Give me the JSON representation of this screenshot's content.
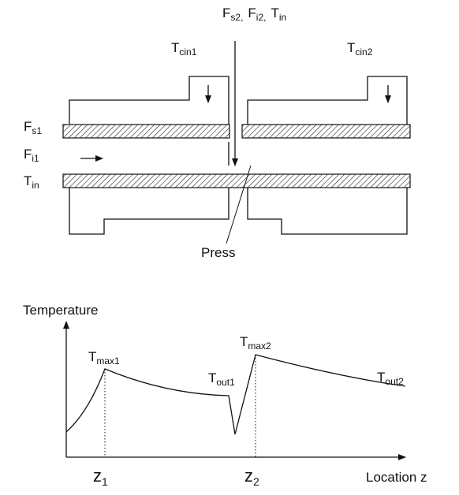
{
  "labels": {
    "fs1": {
      "main": "F",
      "sub": "s1"
    },
    "fi1": {
      "main": "F",
      "sub": "i1"
    },
    "tin_left": {
      "main": "T",
      "sub": "in"
    },
    "top_fs2": {
      "main": "F",
      "sub": "s2,"
    },
    "top_fi2": {
      "main": "F",
      "sub": "i2,"
    },
    "top_tin": {
      "main": "T",
      "sub": "in"
    },
    "tcin1": {
      "main": "T",
      "sub": "cin1"
    },
    "tcin2": {
      "main": "T",
      "sub": "cin2"
    },
    "press": "Press",
    "temperature": "Temperature",
    "tmax1": {
      "main": "T",
      "sub": "max1"
    },
    "tout1": {
      "main": "T",
      "sub": "out1"
    },
    "tmax2": {
      "main": "T",
      "sub": "max2"
    },
    "tout2": {
      "main": "T",
      "sub": "out2"
    },
    "z1": {
      "main": "z",
      "sub": "1"
    },
    "z2": {
      "main": "z",
      "sub": "2"
    },
    "location": "Location z"
  },
  "colors": {
    "ink": "#111111",
    "background": "#ffffff"
  }
}
